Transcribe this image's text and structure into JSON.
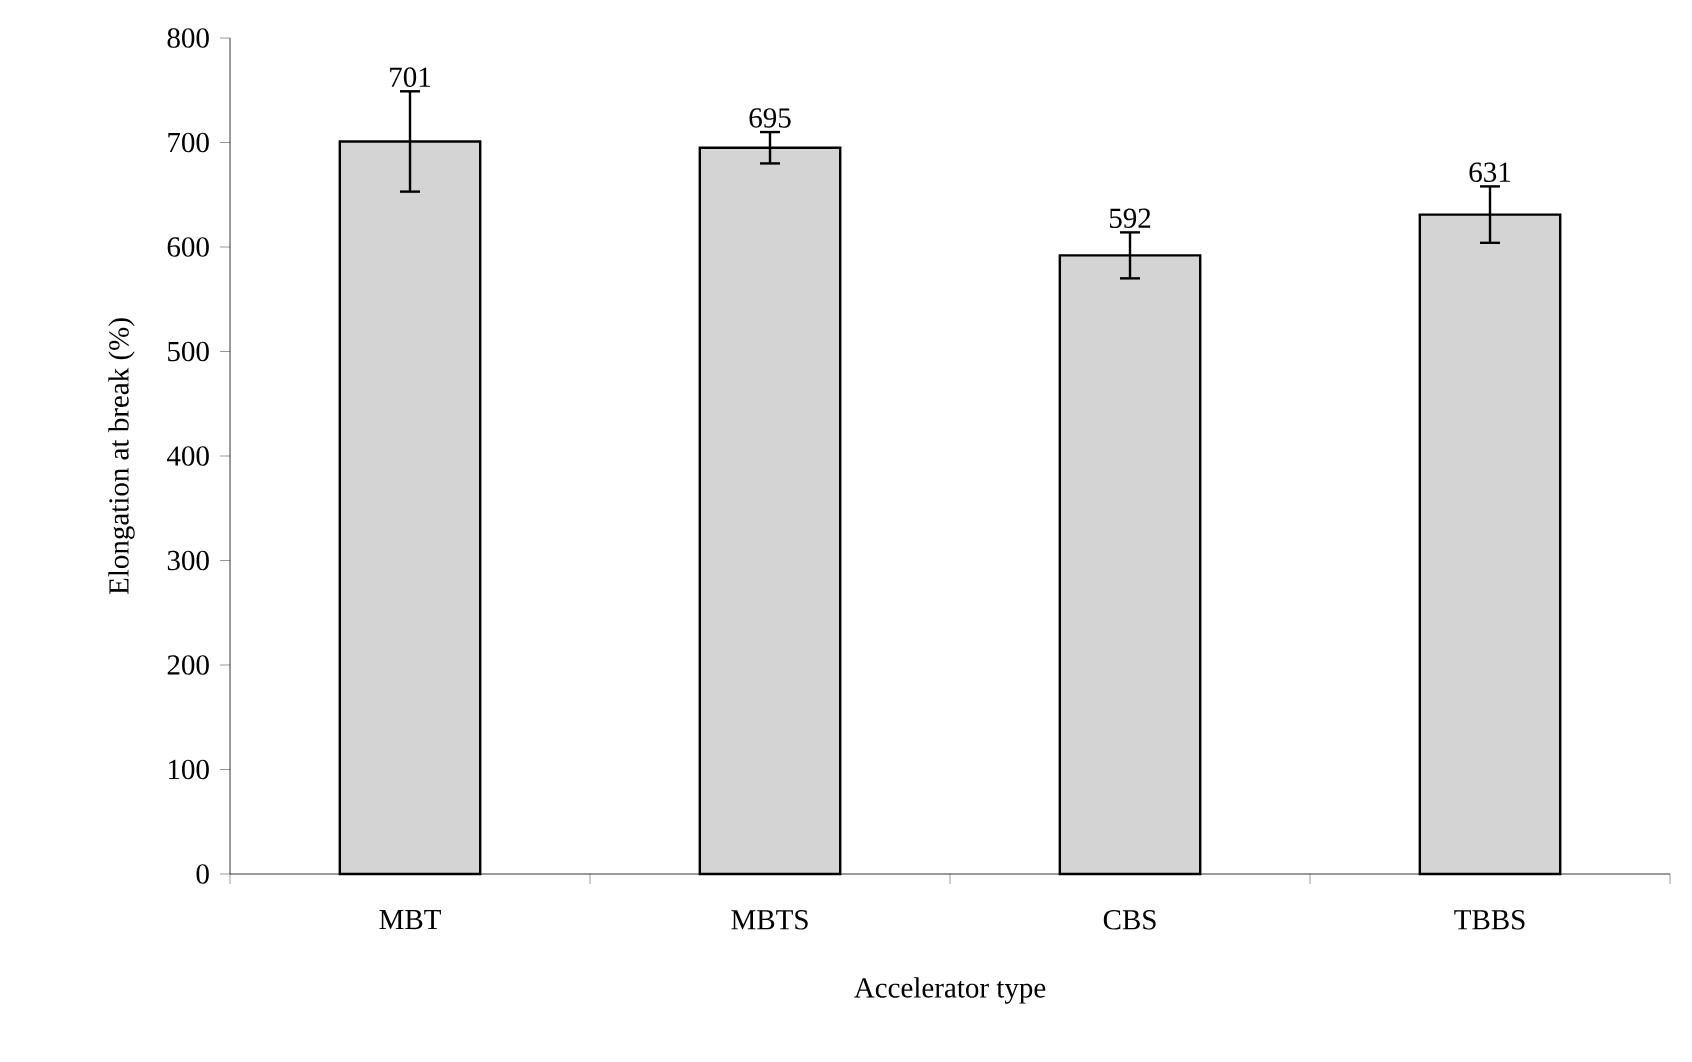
{
  "chart_data": {
    "type": "bar",
    "xlabel": "Accelerator type",
    "ylabel": "Elongation at break (%)",
    "categories": [
      "MBT",
      "MBTS",
      "CBS",
      "TBBS"
    ],
    "values": [
      701,
      695,
      592,
      631
    ],
    "errors": [
      48,
      15,
      22,
      27
    ],
    "color": "#d4d4d4",
    "ylim": [
      0,
      800
    ],
    "yticks": [
      0,
      100,
      200,
      300,
      400,
      500,
      600,
      700,
      800
    ],
    "data_labels": true
  }
}
